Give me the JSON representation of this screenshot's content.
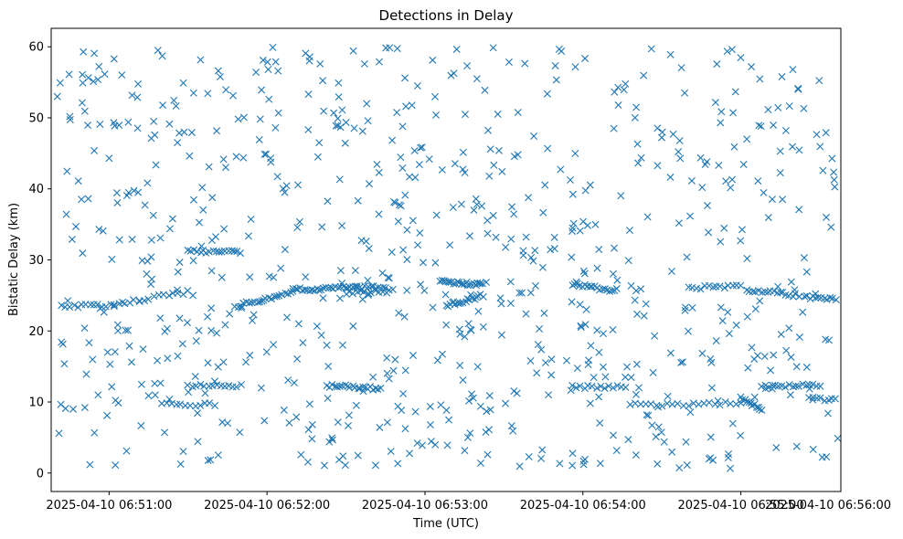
{
  "chart_data": {
    "type": "scatter",
    "title": "Detections in Delay",
    "xlabel": "Time (UTC)",
    "ylabel": "Bistatic Delay (km)",
    "x_unit": "seconds since 2025-04-10 06:50:00",
    "xlim": [
      38,
      338
    ],
    "ylim": [
      -2.6,
      62.6
    ],
    "x_ticks": [
      {
        "value": 60,
        "label": "2025-04-10 06:51:00"
      },
      {
        "value": 120,
        "label": "2025-04-10 06:52:00"
      },
      {
        "value": 180,
        "label": "2025-04-10 06:53:00"
      },
      {
        "value": 240,
        "label": "2025-04-10 06:54:00"
      },
      {
        "value": 300,
        "label": "2025-04-10 06:55:00"
      },
      {
        "value": 360,
        "label": "2025-04-10 06:56:00"
      }
    ],
    "y_ticks": [
      {
        "value": 0,
        "label": "0"
      },
      {
        "value": 10,
        "label": "10"
      },
      {
        "value": 20,
        "label": "20"
      },
      {
        "value": 30,
        "label": "30"
      },
      {
        "value": 40,
        "label": "40"
      },
      {
        "value": 50,
        "label": "50"
      },
      {
        "value": 60,
        "label": "60"
      }
    ],
    "marker": "x",
    "color": "#1f77b4",
    "grid": false,
    "series": [
      {
        "name": "Detections",
        "description": "Scattered detections plus several dense tracks",
        "tracks": [
          {
            "x_start": 42,
            "x_end": 62,
            "y_start": 23.5,
            "y_end": 23.5,
            "n": 14
          },
          {
            "x_start": 62,
            "x_end": 90,
            "y_start": 23.8,
            "y_end": 25.5,
            "n": 16
          },
          {
            "x_start": 90,
            "x_end": 110,
            "y_start": 31.2,
            "y_end": 31.2,
            "n": 18
          },
          {
            "x_start": 108,
            "x_end": 130,
            "y_start": 23.5,
            "y_end": 25.5,
            "n": 22
          },
          {
            "x_start": 130,
            "x_end": 165,
            "y_start": 25.8,
            "y_end": 26.2,
            "n": 40
          },
          {
            "x_start": 150,
            "x_end": 168,
            "y_start": 25.4,
            "y_end": 25.6,
            "n": 14
          },
          {
            "x_start": 186,
            "x_end": 202,
            "y_start": 27.0,
            "y_end": 26.5,
            "n": 24
          },
          {
            "x_start": 188,
            "x_end": 202,
            "y_start": 23.5,
            "y_end": 25.0,
            "n": 18
          },
          {
            "x_start": 236,
            "x_end": 252,
            "y_start": 26.6,
            "y_end": 25.6,
            "n": 18
          },
          {
            "x_start": 280,
            "x_end": 300,
            "y_start": 26.0,
            "y_end": 26.4,
            "n": 14
          },
          {
            "x_start": 302,
            "x_end": 322,
            "y_start": 25.8,
            "y_end": 25.0,
            "n": 18
          },
          {
            "x_start": 324,
            "x_end": 336,
            "y_start": 24.8,
            "y_end": 24.4,
            "n": 12
          },
          {
            "x_start": 90,
            "x_end": 110,
            "y_start": 12.3,
            "y_end": 12.3,
            "n": 14
          },
          {
            "x_start": 80,
            "x_end": 100,
            "y_start": 9.6,
            "y_end": 9.6,
            "n": 12
          },
          {
            "x_start": 143,
            "x_end": 163,
            "y_start": 12.3,
            "y_end": 11.9,
            "n": 22
          },
          {
            "x_start": 236,
            "x_end": 256,
            "y_start": 12.1,
            "y_end": 12.1,
            "n": 14
          },
          {
            "x_start": 258,
            "x_end": 284,
            "y_start": 9.6,
            "y_end": 9.6,
            "n": 14
          },
          {
            "x_start": 286,
            "x_end": 300,
            "y_start": 10.0,
            "y_end": 9.6,
            "n": 8
          },
          {
            "x_start": 308,
            "x_end": 330,
            "y_start": 12.1,
            "y_end": 12.4,
            "n": 18
          },
          {
            "x_start": 326,
            "x_end": 336,
            "y_start": 10.4,
            "y_end": 10.4,
            "n": 8
          },
          {
            "x_start": 300,
            "x_end": 308,
            "y_start": 10.5,
            "y_end": 9.0,
            "n": 12
          }
        ],
        "scatter_count": 760,
        "scatter_y_range": [
          0.5,
          60
        ],
        "scatter_x_range": [
          40,
          337
        ]
      }
    ]
  }
}
